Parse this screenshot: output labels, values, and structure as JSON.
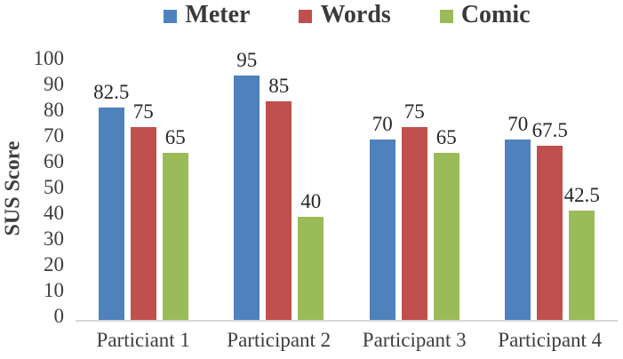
{
  "chart_data": {
    "type": "bar",
    "title": "",
    "xlabel": "",
    "ylabel": "SUS Score",
    "categories": [
      "Particiant 1",
      "Participant 2",
      "Participant 3",
      "Participant 4"
    ],
    "series": [
      {
        "name": "Meter",
        "color": "#4F81BD",
        "values": [
          82.5,
          95,
          70,
          70
        ]
      },
      {
        "name": "Words",
        "color": "#C0504D",
        "values": [
          75,
          85,
          75,
          67.5
        ]
      },
      {
        "name": "Comic",
        "color": "#9BBB59",
        "values": [
          65,
          40,
          65,
          42.5
        ]
      }
    ],
    "data_labels": {
      "Meter": [
        "82.5",
        "95",
        "70",
        "70"
      ],
      "Words": [
        "75",
        "85",
        "75",
        "67.5"
      ],
      "Comic": [
        "65",
        "40",
        "65",
        "42.5"
      ]
    },
    "ylim": [
      0,
      100
    ],
    "yticks": [
      0,
      10,
      20,
      30,
      40,
      50,
      60,
      70,
      80,
      90,
      100
    ],
    "grid": false,
    "legend_position": "top"
  },
  "colors": {
    "axis_line": "#d6d6d6",
    "tick_text": "#3d3d3d",
    "data_label_text": "#262626",
    "legend_text": "#3a3a3a"
  }
}
